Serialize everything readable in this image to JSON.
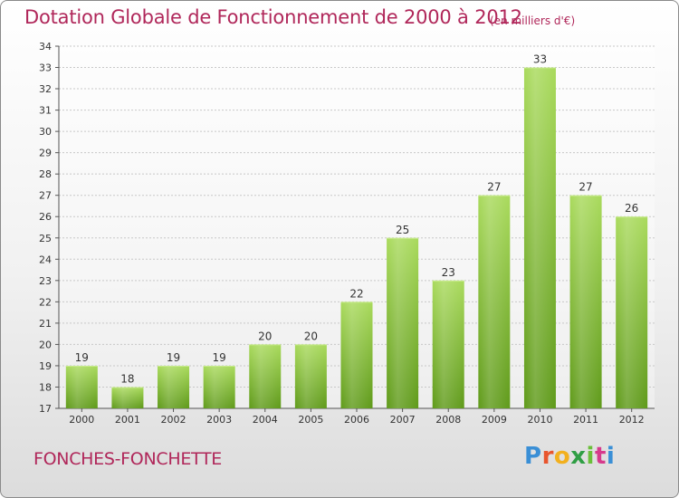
{
  "header": {
    "title": "Dotation Globale de Fonctionnement de 2000 à 2012",
    "unit": "(en milliers d'€)"
  },
  "footer": {
    "commune": "FONCHES-FONCHETTE",
    "logo": "Proxiti",
    "logo_colors": [
      "#3a8fd6",
      "#e8552e",
      "#f2b01e",
      "#2f9e44",
      "#6abf3a",
      "#d63a8c",
      "#3a8fd6"
    ]
  },
  "colors": {
    "bar_top": "#a9da5c",
    "bar_bottom": "#5f9a1a",
    "text": "#b0275a",
    "axis_text": "#333333"
  },
  "chart_data": {
    "type": "bar",
    "title": "Dotation Globale de Fonctionnement de 2000 à 2012",
    "subtitle": "(en milliers d'€)",
    "categories": [
      "2000",
      "2001",
      "2002",
      "2003",
      "2004",
      "2005",
      "2006",
      "2007",
      "2008",
      "2009",
      "2010",
      "2011",
      "2012"
    ],
    "values": [
      19,
      18,
      19,
      19,
      20,
      20,
      22,
      25,
      23,
      27,
      33,
      27,
      26
    ],
    "ylim": [
      17,
      34
    ],
    "yticks": [
      17,
      18,
      19,
      20,
      21,
      22,
      23,
      24,
      25,
      26,
      27,
      28,
      29,
      30,
      31,
      32,
      33,
      34
    ],
    "grid": true,
    "data_labels": true
  }
}
